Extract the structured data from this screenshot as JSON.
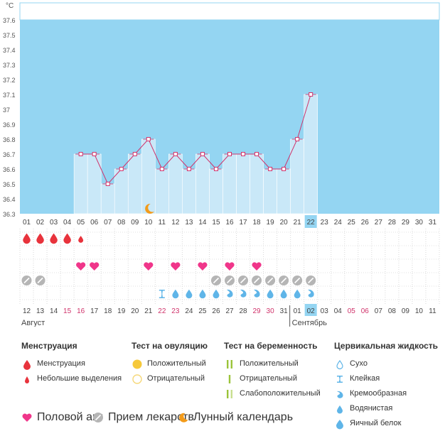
{
  "chart_data": {
    "type": "line",
    "unit": "°C",
    "y_ticks": [
      "37.6",
      "37.5",
      "37.4",
      "37.3",
      "37.2",
      "37.1",
      "37",
      "36.9",
      "36.8",
      "36.7",
      "36.6",
      "36.5",
      "36.4",
      "36.3"
    ],
    "ylim": [
      36.3,
      37.6
    ],
    "cycle_days": [
      "01",
      "02",
      "03",
      "04",
      "05",
      "06",
      "07",
      "08",
      "09",
      "10",
      "11",
      "12",
      "13",
      "14",
      "15",
      "16",
      "17",
      "18",
      "19",
      "20",
      "21",
      "22",
      "23",
      "24",
      "25",
      "26",
      "27",
      "28",
      "29",
      "30",
      "31"
    ],
    "highlighted_cycle_day": "22",
    "temperatures": [
      null,
      null,
      null,
      null,
      36.7,
      36.7,
      36.5,
      36.6,
      36.7,
      36.8,
      36.6,
      36.7,
      36.6,
      36.7,
      36.6,
      36.7,
      36.7,
      36.7,
      36.6,
      36.6,
      36.8,
      37.1,
      null,
      null,
      null,
      null,
      null,
      null,
      null,
      null,
      null
    ],
    "line_color": "#d0336b",
    "fill_color": "#c9e8f8",
    "background_color": "#94d5f2",
    "moon_day_index": 9,
    "menstruation": [
      "full",
      "full",
      "full",
      "full",
      "small",
      null,
      null,
      null,
      null,
      null,
      null,
      null,
      null,
      null,
      null,
      null,
      null,
      null,
      null,
      null,
      null,
      null,
      null,
      null,
      null,
      null,
      null,
      null,
      null,
      null,
      null
    ],
    "intercourse": [
      null,
      null,
      null,
      null,
      "yes",
      "yes",
      null,
      null,
      null,
      "yes",
      null,
      "yes",
      null,
      "yes",
      null,
      "yes",
      null,
      "yes",
      null,
      null,
      null,
      null,
      null,
      null,
      null,
      null,
      null,
      null,
      null,
      null,
      null
    ],
    "medication": [
      "yes",
      "yes",
      null,
      null,
      null,
      null,
      null,
      null,
      null,
      null,
      null,
      null,
      null,
      null,
      "yes",
      "yes",
      "yes",
      "yes",
      "yes",
      "yes",
      "yes",
      "yes",
      null,
      null,
      null,
      null,
      null,
      null,
      null,
      null,
      null
    ],
    "cervical_fluid": [
      null,
      null,
      null,
      null,
      null,
      null,
      null,
      null,
      null,
      null,
      "sticky",
      "watery",
      "watery",
      "watery",
      "watery",
      "creamy",
      "creamy",
      "creamy",
      "watery",
      "watery",
      "watery",
      "creamy",
      null,
      null,
      null,
      null,
      null,
      null,
      null,
      null,
      null
    ],
    "calendar_dates": [
      {
        "d": "12",
        "red": false
      },
      {
        "d": "13",
        "red": false
      },
      {
        "d": "14",
        "red": false
      },
      {
        "d": "15",
        "red": true
      },
      {
        "d": "16",
        "red": true
      },
      {
        "d": "17",
        "red": false
      },
      {
        "d": "18",
        "red": false
      },
      {
        "d": "19",
        "red": false
      },
      {
        "d": "20",
        "red": false
      },
      {
        "d": "21",
        "red": false
      },
      {
        "d": "22",
        "red": true
      },
      {
        "d": "23",
        "red": true
      },
      {
        "d": "24",
        "red": false
      },
      {
        "d": "25",
        "red": false
      },
      {
        "d": "26",
        "red": false
      },
      {
        "d": "27",
        "red": false
      },
      {
        "d": "28",
        "red": false
      },
      {
        "d": "29",
        "red": true
      },
      {
        "d": "30",
        "red": true
      },
      {
        "d": "31",
        "red": false
      },
      {
        "d": "01",
        "red": false
      },
      {
        "d": "02",
        "red": false
      },
      {
        "d": "03",
        "red": false
      },
      {
        "d": "04",
        "red": false
      },
      {
        "d": "05",
        "red": true
      },
      {
        "d": "06",
        "red": true
      },
      {
        "d": "07",
        "red": false
      },
      {
        "d": "08",
        "red": false
      },
      {
        "d": "09",
        "red": false
      },
      {
        "d": "10",
        "red": false
      },
      {
        "d": "11",
        "red": false
      }
    ],
    "month_left": "Август",
    "month_right": "Сентябрь",
    "month_change_index": 20
  },
  "legend": {
    "menstruation": {
      "title": "Менструация",
      "items": [
        "Менструация",
        "Небольшие выделения"
      ]
    },
    "ovulation_test": {
      "title": "Тест на овуляцию",
      "items": [
        "Положительный",
        "Отрицательный"
      ]
    },
    "pregnancy_test": {
      "title": "Тест на беременность",
      "items": [
        "Положительный",
        "Отрицательный",
        "Слабоположительный"
      ]
    },
    "cervical": {
      "title": "Цервикальная жидкость",
      "items": [
        "Сухо",
        "Клейкая",
        "Кремообразная",
        "Водянистая",
        "Яичный белок"
      ]
    },
    "bottom": [
      "Половой акт",
      "Прием лекарств",
      "Лунный календарь"
    ]
  },
  "colors": {
    "red_drop": "#e8333c",
    "heart": "#f0368a",
    "pill": "#b5b5b5",
    "moon": "#f39b1a",
    "cervical": "#5fb5e8",
    "ov_pos": "#f6c93a",
    "ov_neg": "#f6d87a",
    "preg_pos": "#9bc43a",
    "preg_weak": "#c8df8f",
    "red_text": "#d0336b"
  }
}
